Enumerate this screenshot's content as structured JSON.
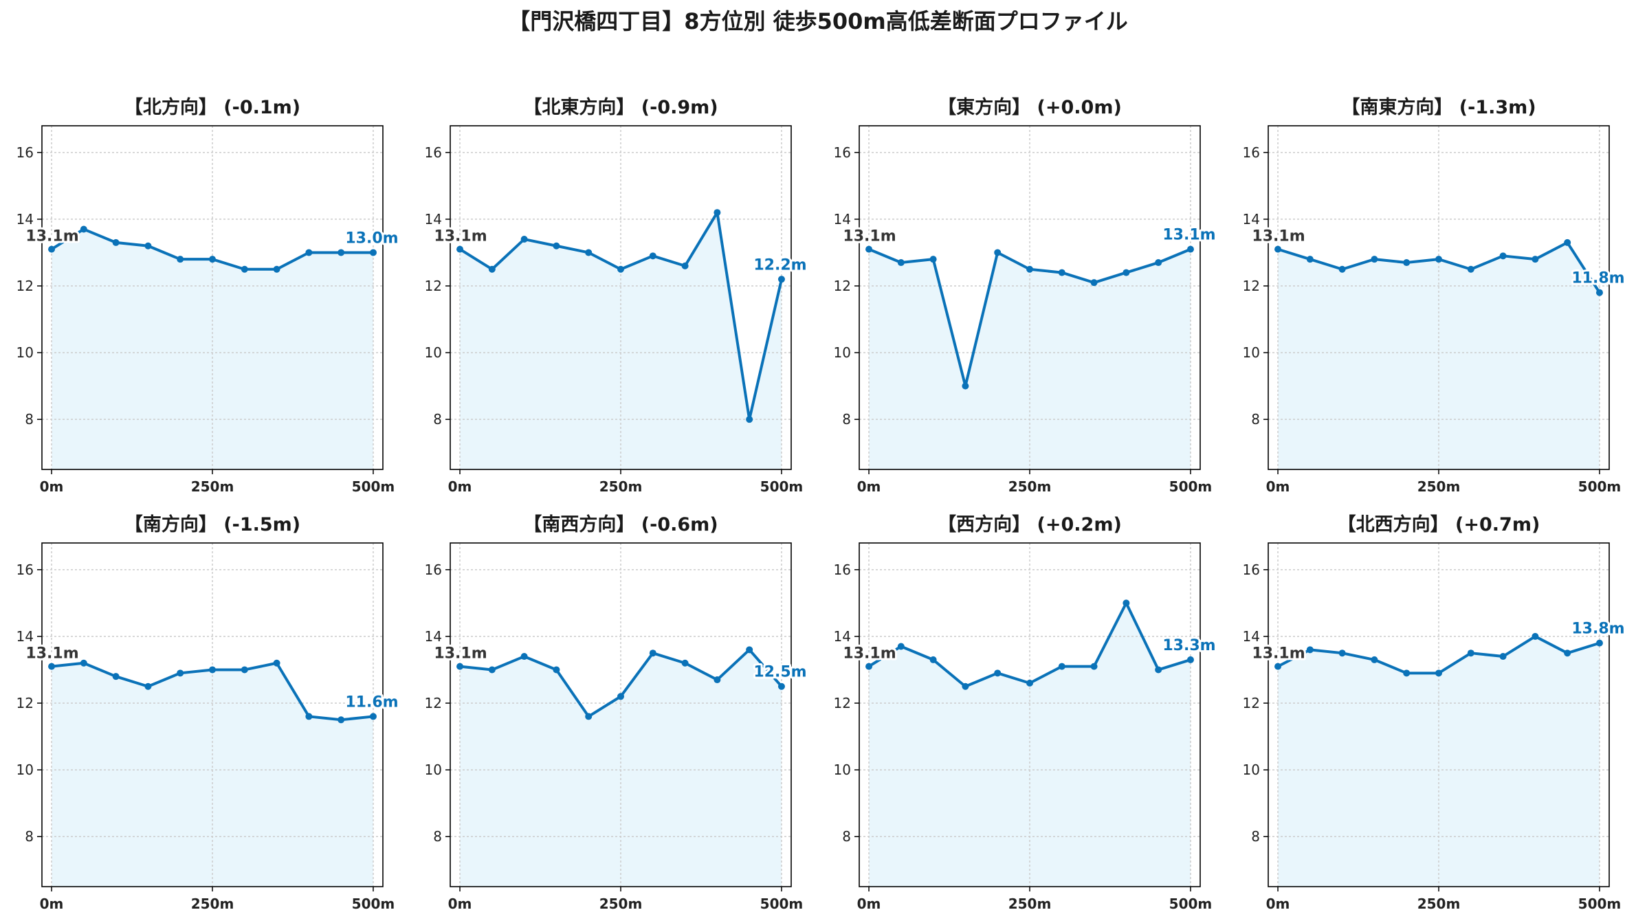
{
  "title": "【門沢橋四丁目】8方位別 徒歩500m高低差断面プロファイル",
  "colors": {
    "line": "#0a72b8",
    "fill": "#e9f6fc",
    "start_label": "#333333",
    "end_label": "#0a72b8"
  },
  "chart_data": [
    {
      "type": "area",
      "title": "【北方向】 (-0.1m)",
      "x": [
        0,
        50,
        100,
        150,
        200,
        250,
        300,
        350,
        400,
        450,
        500
      ],
      "y": [
        13.1,
        13.7,
        13.3,
        13.2,
        12.8,
        12.8,
        12.5,
        12.5,
        13.0,
        13.0,
        13.0
      ],
      "start_label": "13.1m",
      "end_label": "13.0m",
      "xticks": [
        "0m",
        "250m",
        "500m"
      ],
      "yticks": [
        8,
        10,
        12,
        14,
        16
      ],
      "xlim": [
        -15,
        515
      ],
      "ylim": [
        6.5,
        16.8
      ],
      "grid": true
    },
    {
      "type": "area",
      "title": "【北東方向】 (-0.9m)",
      "x": [
        0,
        50,
        100,
        150,
        200,
        250,
        300,
        350,
        400,
        450,
        500
      ],
      "y": [
        13.1,
        12.5,
        13.4,
        13.2,
        13.0,
        12.5,
        12.9,
        12.6,
        14.2,
        8.0,
        12.2
      ],
      "start_label": "13.1m",
      "end_label": "12.2m",
      "xticks": [
        "0m",
        "250m",
        "500m"
      ],
      "yticks": [
        8,
        10,
        12,
        14,
        16
      ],
      "xlim": [
        -15,
        515
      ],
      "ylim": [
        6.5,
        16.8
      ],
      "grid": true
    },
    {
      "type": "area",
      "title": "【東方向】 (+0.0m)",
      "x": [
        0,
        50,
        100,
        150,
        200,
        250,
        300,
        350,
        400,
        450,
        500
      ],
      "y": [
        13.1,
        12.7,
        12.8,
        9.0,
        13.0,
        12.5,
        12.4,
        12.1,
        12.4,
        12.7,
        13.1
      ],
      "start_label": "13.1m",
      "end_label": "13.1m",
      "xticks": [
        "0m",
        "250m",
        "500m"
      ],
      "yticks": [
        8,
        10,
        12,
        14,
        16
      ],
      "xlim": [
        -15,
        515
      ],
      "ylim": [
        6.5,
        16.8
      ],
      "grid": true
    },
    {
      "type": "area",
      "title": "【南東方向】 (-1.3m)",
      "x": [
        0,
        50,
        100,
        150,
        200,
        250,
        300,
        350,
        400,
        450,
        500
      ],
      "y": [
        13.1,
        12.8,
        12.5,
        12.8,
        12.7,
        12.8,
        12.5,
        12.9,
        12.8,
        13.3,
        11.8
      ],
      "start_label": "13.1m",
      "end_label": "11.8m",
      "xticks": [
        "0m",
        "250m",
        "500m"
      ],
      "yticks": [
        8,
        10,
        12,
        14,
        16
      ],
      "xlim": [
        -15,
        515
      ],
      "ylim": [
        6.5,
        16.8
      ],
      "grid": true
    },
    {
      "type": "area",
      "title": "【南方向】 (-1.5m)",
      "x": [
        0,
        50,
        100,
        150,
        200,
        250,
        300,
        350,
        400,
        450,
        500
      ],
      "y": [
        13.1,
        13.2,
        12.8,
        12.5,
        12.9,
        13.0,
        13.0,
        13.2,
        11.6,
        11.5,
        11.6
      ],
      "start_label": "13.1m",
      "end_label": "11.6m",
      "xticks": [
        "0m",
        "250m",
        "500m"
      ],
      "yticks": [
        8,
        10,
        12,
        14,
        16
      ],
      "xlim": [
        -15,
        515
      ],
      "ylim": [
        6.5,
        16.8
      ],
      "grid": true
    },
    {
      "type": "area",
      "title": "【南西方向】 (-0.6m)",
      "x": [
        0,
        50,
        100,
        150,
        200,
        250,
        300,
        350,
        400,
        450,
        500
      ],
      "y": [
        13.1,
        13.0,
        13.4,
        13.0,
        11.6,
        12.2,
        13.5,
        13.2,
        12.7,
        13.6,
        12.5
      ],
      "start_label": "13.1m",
      "end_label": "12.5m",
      "xticks": [
        "0m",
        "250m",
        "500m"
      ],
      "yticks": [
        8,
        10,
        12,
        14,
        16
      ],
      "xlim": [
        -15,
        515
      ],
      "ylim": [
        6.5,
        16.8
      ],
      "grid": true
    },
    {
      "type": "area",
      "title": "【西方向】 (+0.2m)",
      "x": [
        0,
        50,
        100,
        150,
        200,
        250,
        300,
        350,
        400,
        450,
        500
      ],
      "y": [
        13.1,
        13.7,
        13.3,
        12.5,
        12.9,
        12.6,
        13.1,
        13.1,
        15.0,
        13.0,
        13.3
      ],
      "start_label": "13.1m",
      "end_label": "13.3m",
      "xticks": [
        "0m",
        "250m",
        "500m"
      ],
      "yticks": [
        8,
        10,
        12,
        14,
        16
      ],
      "xlim": [
        -15,
        515
      ],
      "ylim": [
        6.5,
        16.8
      ],
      "grid": true
    },
    {
      "type": "area",
      "title": "【北西方向】 (+0.7m)",
      "x": [
        0,
        50,
        100,
        150,
        200,
        250,
        300,
        350,
        400,
        450,
        500
      ],
      "y": [
        13.1,
        13.6,
        13.5,
        13.3,
        12.9,
        12.9,
        13.5,
        13.4,
        14.0,
        13.5,
        13.8
      ],
      "start_label": "13.1m",
      "end_label": "13.8m",
      "xticks": [
        "0m",
        "250m",
        "500m"
      ],
      "yticks": [
        8,
        10,
        12,
        14,
        16
      ],
      "xlim": [
        -15,
        515
      ],
      "ylim": [
        6.5,
        16.8
      ],
      "grid": true
    }
  ]
}
